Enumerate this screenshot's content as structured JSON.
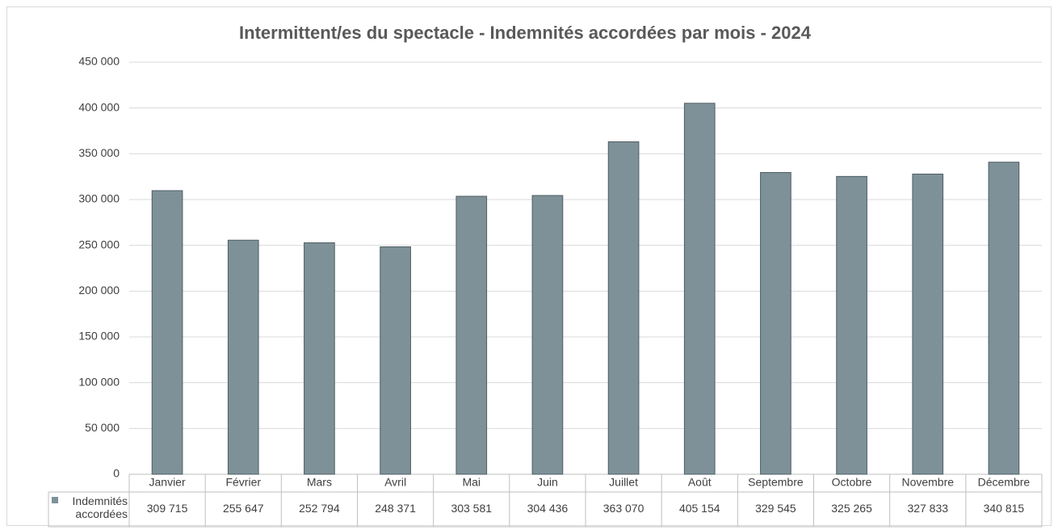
{
  "chart_data": {
    "type": "bar",
    "title": "Intermittent/es du spectacle - Indemnités accordées par mois - 2024",
    "categories": [
      "Janvier",
      "Février",
      "Mars",
      "Avril",
      "Mai",
      "Juin",
      "Juillet",
      "Août",
      "Septembre",
      "Octobre",
      "Novembre",
      "Décembre"
    ],
    "series": [
      {
        "name": "Indemnités accordées",
        "color": "#7e9198",
        "values": [
          309715,
          255647,
          252794,
          248371,
          303581,
          304436,
          363070,
          405154,
          329545,
          325265,
          327833,
          340815
        ],
        "value_labels": [
          "309 715",
          "255 647",
          "252 794",
          "248 371",
          "303 581",
          "304 436",
          "363 070",
          "405 154",
          "329 545",
          "325 265",
          "327 833",
          "340 815"
        ]
      }
    ],
    "ylim": [
      0,
      450000
    ],
    "yticks": [
      0,
      {
        "value": 50000,
        "label": "50 000"
      },
      {
        "value": 100000,
        "label": "100 000"
      },
      {
        "value": 150000,
        "label": "150 000"
      },
      {
        "value": 200000,
        "label": "200 000"
      },
      {
        "value": 250000,
        "label": "250 000"
      },
      {
        "value": 300000,
        "label": "300 000"
      },
      {
        "value": 350000,
        "label": "350 000"
      },
      {
        "value": 400000,
        "label": "400 000"
      },
      {
        "value": 450000,
        "label": "450 000"
      }
    ],
    "grid": true
  }
}
